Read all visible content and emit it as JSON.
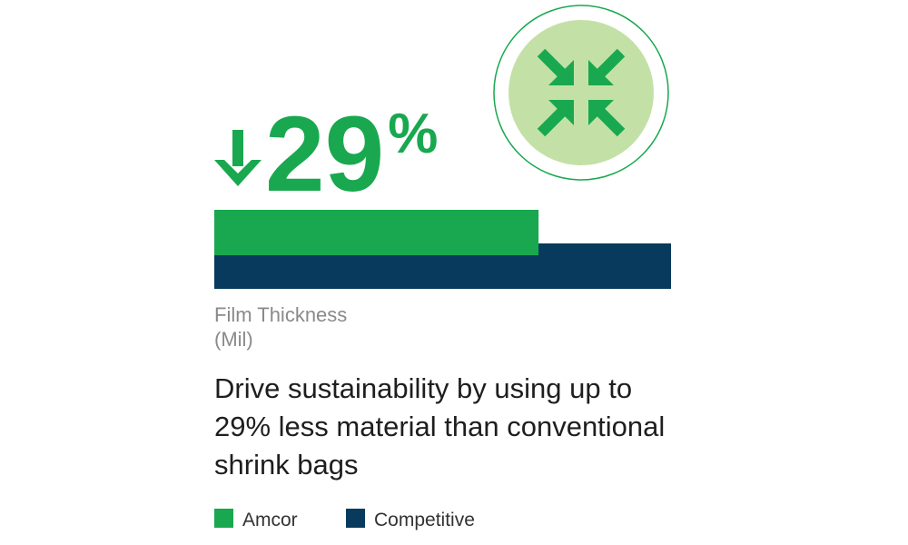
{
  "chart_data": {
    "type": "bar",
    "orientation": "horizontal",
    "headline": "29%",
    "subtitle": "Film Thickness",
    "unit": "(Mil)",
    "description": [
      "Drive sustainability by using up to",
      "29% less material than conventional",
      "shrink bags"
    ],
    "series": [
      {
        "name": "Amcor",
        "color": "#19a84f",
        "values": [
          71
        ]
      },
      {
        "name": "Competitive",
        "color": "#073a5c",
        "values": [
          100
        ]
      }
    ]
  }
}
